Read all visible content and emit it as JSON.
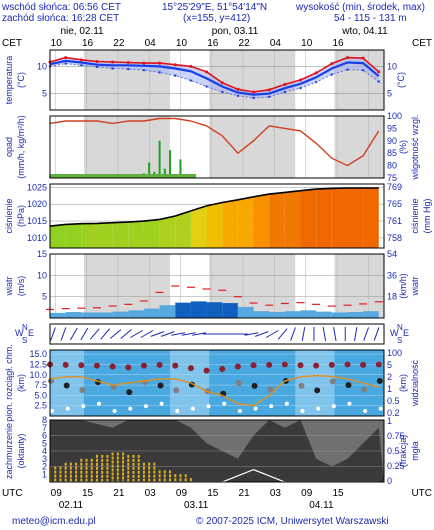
{
  "header": {
    "sunrise": "wschód słońca: 06:56 CET",
    "sunset": "zachód słońca: 16:28 CET",
    "coords": "15°25'29\"E, 51°54'14\"N",
    "grid": "(x=155, y=412)",
    "elevation_title": "wysokość (min, środek, max)",
    "elevation_values": "54 - 115 - 131 m"
  },
  "time_axis": {
    "tz_left": "CET",
    "tz_right": "CET",
    "days": [
      "nie, 02.11",
      "pon, 03.11",
      "wto, 04.11"
    ],
    "top_hours": [
      "10",
      "16",
      "22",
      "04",
      "10",
      "16",
      "22",
      "04",
      "10",
      "16"
    ],
    "utc_label": "UTC",
    "bottom_hours": [
      "09",
      "15",
      "21",
      "03",
      "09",
      "15",
      "21",
      "03",
      "09",
      "15"
    ],
    "bottom_days": [
      "02.11",
      "03.11",
      "04.11"
    ]
  },
  "footer": {
    "email": "meteo@icm.edu.pl",
    "copyright": "© 2007-2025 ICM, Uniwersytet Warszawski"
  },
  "colors": {
    "temp_red": "#e01020",
    "temp_blue": "#1840e8",
    "axis_blue": "#1a2bb0",
    "precip_green": "#20a020",
    "humidity_red": "#d04020",
    "wind_red": "#e02020",
    "wind_blue": "#1060d0",
    "visibility_orange": "#e09020",
    "cloud_fill": "#e0b020"
  },
  "chart_data": [
    {
      "type": "line",
      "name": "temperature",
      "left_label": "temperatura",
      "left_unit": "(°C)",
      "right_unit": "(°C)",
      "y_ticks": [
        "10",
        "5"
      ],
      "right_ticks": [
        "10",
        "5"
      ],
      "ylim": [
        2,
        13
      ],
      "x": [
        0,
        3,
        6,
        9,
        12,
        15,
        18,
        21,
        24,
        27,
        30,
        33,
        36,
        39,
        42,
        45,
        48,
        51,
        54,
        57,
        60,
        63
      ],
      "series": [
        {
          "key": "max",
          "values": [
            10.8,
            11.6,
            11.2,
            10.9,
            10.8,
            10.7,
            10.6,
            10.6,
            10.3,
            10.0,
            9.0,
            7.0,
            5.8,
            5.3,
            5.7,
            6.7,
            7.5,
            8.8,
            10.5,
            11.6,
            11.5,
            9.0
          ]
        },
        {
          "key": "mean",
          "values": [
            10.4,
            11.0,
            10.7,
            10.3,
            10.2,
            10.2,
            10.1,
            10.0,
            9.6,
            9.1,
            7.8,
            6.3,
            5.2,
            4.8,
            5.0,
            6.0,
            6.8,
            8.0,
            9.6,
            10.7,
            10.6,
            8.2
          ]
        },
        {
          "key": "min",
          "values": [
            10.0,
            10.5,
            10.2,
            9.9,
            9.6,
            9.5,
            9.3,
            8.9,
            8.3,
            7.4,
            6.3,
            5.3,
            4.6,
            4.2,
            4.4,
            5.3,
            6.0,
            7.1,
            8.5,
            9.4,
            9.3,
            7.2
          ]
        }
      ]
    },
    {
      "type": "bar",
      "name": "precipitation_humidity",
      "left_label": "opad",
      "left_unit": "(mm/h, kg/m²/h)",
      "right_label": "wilgotność wzgl.",
      "right_unit": "(%)",
      "right_ticks": [
        "100",
        "95",
        "90",
        "85",
        "80",
        "75"
      ],
      "hum_ylim": [
        75,
        100
      ],
      "hum_x": [
        0,
        3,
        6,
        9,
        12,
        15,
        18,
        21,
        24,
        27,
        30,
        33,
        36,
        39,
        42,
        45,
        48,
        51,
        54,
        57,
        60,
        63
      ],
      "humidity": [
        97,
        98,
        98,
        98,
        97,
        98,
        98,
        99,
        99,
        98,
        96,
        92,
        85,
        90,
        96,
        95,
        94,
        89,
        83,
        80,
        84,
        94
      ],
      "precip_x": [
        0,
        3,
        6,
        9,
        12,
        15,
        18,
        19,
        20,
        21,
        22,
        23,
        24,
        25,
        26,
        27
      ],
      "precip": [
        0.05,
        0.1,
        0.05,
        0.05,
        0.05,
        0.1,
        0.15,
        0.5,
        0.2,
        1.2,
        0.3,
        0.9,
        0.1,
        0.6,
        0.1,
        0.05
      ],
      "precip_ylim": [
        0,
        2
      ]
    },
    {
      "type": "area",
      "name": "pressure",
      "left_label": "ciśnienie",
      "left_unit": "(hPa)",
      "right_label": "ciśnienie",
      "right_unit": "(mm Hg)",
      "y_ticks": [
        "1025",
        "1020",
        "1015",
        "1010"
      ],
      "right_ticks": [
        "769",
        "765",
        "761",
        "758"
      ],
      "ylim": [
        1007,
        1026
      ],
      "x": [
        0,
        3,
        6,
        9,
        12,
        15,
        18,
        21,
        24,
        27,
        30,
        33,
        36,
        39,
        42,
        45,
        48,
        51,
        54,
        57,
        60,
        63
      ],
      "values": [
        1013.5,
        1014.0,
        1014.2,
        1014.3,
        1014.5,
        1014.7,
        1015.0,
        1015.5,
        1016.5,
        1018.0,
        1019.5,
        1020.5,
        1021.3,
        1022.2,
        1023.0,
        1023.5,
        1024.0,
        1024.5,
        1024.7,
        1024.8,
        1024.8,
        1024.8
      ]
    },
    {
      "type": "line",
      "name": "wind",
      "left_label": "wiatr",
      "left_unit": "(m/s)",
      "right_label": "wiatr",
      "right_unit": "(km/h)",
      "y_ticks": [
        "15",
        "10",
        "5"
      ],
      "right_ticks": [
        "54",
        "36",
        "18"
      ],
      "ylim": [
        0,
        15
      ],
      "x": [
        0,
        3,
        6,
        9,
        12,
        15,
        18,
        21,
        24,
        27,
        30,
        33,
        36,
        39,
        42,
        45,
        48,
        51,
        54,
        57,
        60,
        63
      ],
      "speed": [
        1.2,
        1.4,
        1.3,
        1.3,
        1.5,
        1.8,
        2.2,
        3.0,
        3.6,
        3.9,
        3.7,
        3.5,
        2.6,
        1.6,
        1.4,
        1.6,
        1.8,
        1.5,
        1.3,
        1.4,
        1.6,
        1.8
      ],
      "gusts": [
        2.0,
        2.2,
        2.3,
        2.4,
        2.8,
        3.2,
        4.0,
        6.0,
        7.5,
        7.2,
        6.8,
        6.5,
        5.0,
        3.5,
        3.0,
        3.4,
        3.6,
        3.2,
        2.8,
        3.0,
        3.3,
        3.8
      ]
    },
    {
      "type": "scatter",
      "name": "wind_direction",
      "left_label": "W",
      "right_label": "E",
      "top_label": "N",
      "bottom_label": "S",
      "x": [
        0,
        2,
        4,
        6,
        8,
        10,
        12,
        14,
        16,
        18,
        20,
        22,
        24,
        26,
        28,
        30,
        32,
        34,
        36,
        38,
        40,
        42,
        44,
        46,
        48,
        50,
        52,
        54,
        56,
        58,
        60,
        62
      ],
      "direction_deg": [
        200,
        200,
        210,
        210,
        220,
        220,
        230,
        230,
        240,
        240,
        250,
        250,
        260,
        260,
        260,
        270,
        270,
        270,
        270,
        260,
        250,
        240,
        220,
        200,
        190,
        180,
        170,
        170,
        180,
        190,
        200,
        200
      ]
    },
    {
      "type": "scatter",
      "name": "cloud_base_visibility",
      "left_label": "pion. rozciągł. chm.",
      "left_unit": "(km)",
      "right_label": "widzialność",
      "right_unit": "(km)",
      "y_ticks": [
        "15.0",
        "12.5",
        "10.0",
        "7.5",
        "5.0",
        "2.5"
      ],
      "right_ticks": [
        "100",
        "5",
        "2",
        "1",
        "0.5",
        "0.2"
      ],
      "ylim": [
        0,
        16
      ],
      "x": [
        0,
        3,
        6,
        9,
        12,
        15,
        18,
        21,
        24,
        27,
        30,
        33,
        36,
        39,
        42,
        45,
        48,
        51,
        54,
        57,
        60,
        63
      ],
      "cloud_top_km": [
        12.5,
        12.4,
        12.3,
        12.2,
        12.0,
        11.8,
        12.2,
        12.4,
        12.2,
        11.6,
        11.0,
        11.4,
        12.0,
        12.3,
        12.4,
        12.5,
        12.3,
        12.2,
        12.4,
        12.5,
        12.4,
        12.5
      ],
      "visibility": [
        9.0,
        9.5,
        9.5,
        8.5,
        7.5,
        8.0,
        8.5,
        9.0,
        9.0,
        8.0,
        6.0,
        5.0,
        3.0,
        2.5,
        5.0,
        8.5,
        9.5,
        9.8,
        9.6,
        9.0,
        8.0,
        7.0
      ]
    },
    {
      "type": "area",
      "name": "cloudiness_fog",
      "left_label": "zachmurzenie",
      "left_unit": "(oktanty)",
      "right_label": "mgła",
      "right_unit": "(frakcja)",
      "y_ticks": [
        "8",
        "7",
        "6",
        "5",
        "4",
        "3",
        "2",
        "1"
      ],
      "right_ticks": [
        "1",
        "0.75",
        "0.5",
        "0.25",
        "0"
      ],
      "ylim": [
        0,
        8
      ],
      "x": [
        0,
        3,
        6,
        9,
        12,
        15,
        18,
        21,
        24,
        27,
        30,
        33,
        36,
        39,
        42,
        45,
        48,
        51,
        54,
        57,
        60,
        63
      ],
      "total": [
        8,
        8,
        8,
        7.5,
        7,
        8,
        8,
        8,
        8,
        7,
        5,
        4,
        3,
        6,
        8,
        7,
        8,
        3,
        2,
        3,
        5,
        7
      ],
      "low": [
        2.0,
        2.5,
        3.0,
        3.5,
        3.8,
        3.5,
        2.5,
        1.5,
        1.0,
        0.5,
        0,
        0,
        0,
        0,
        0,
        0,
        0,
        0,
        0,
        0,
        0,
        0
      ],
      "fog": [
        0,
        0,
        0,
        0,
        0,
        0,
        0,
        0,
        0,
        0,
        0,
        0,
        0.1,
        0.2,
        0.1,
        0,
        0,
        0,
        0,
        0,
        0,
        0
      ]
    }
  ]
}
